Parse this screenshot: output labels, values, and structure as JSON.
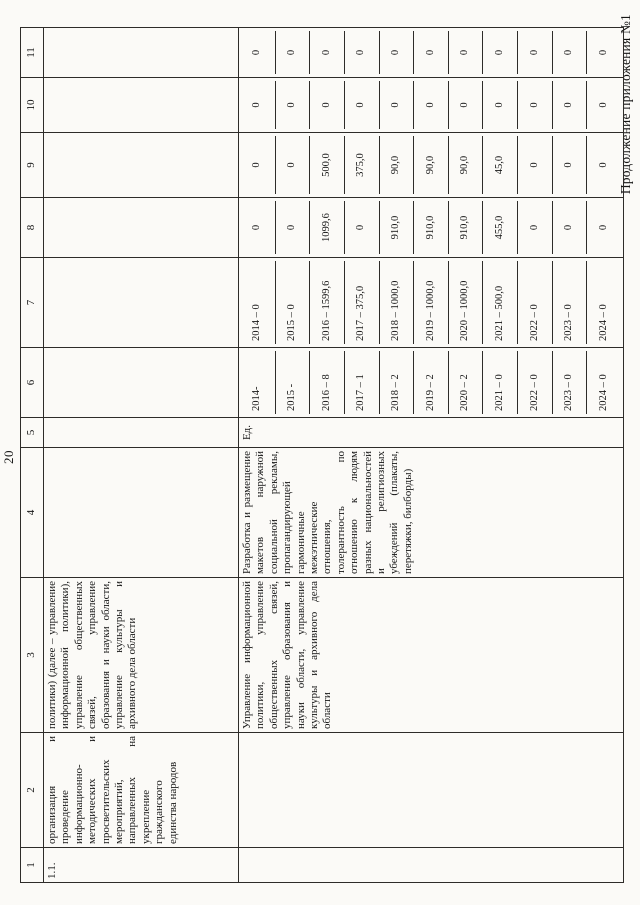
{
  "page": {
    "number": "20",
    "header": "Продолжение приложения №1"
  },
  "table": {
    "column_numbers": [
      "1",
      "2",
      "3",
      "4",
      "5",
      "6",
      "7",
      "8",
      "9",
      "10",
      "11"
    ],
    "row_continuation": {
      "num": "1.1.",
      "activity": "организация и проведение информационно-методических и просветительских мероприятий, направленных на укрепление гражданского единства народов",
      "responsible_tail": "политики) (далее – управление информационной политики), управление общественных связей, управление образования и науки области, управление культуры и архивного дела области"
    },
    "row_main": {
      "responsible": "Управление информационной политики, управление общественных связей, управление образования и науки области, управление культуры и архивного дела области",
      "activity_description": "Разработка и размещение макетов наружной социальной рекламы, пропагандирующей гармоничные межэтнические отношения, толерантность по отношению к людям разных национальностей и религиозных убеждений (плакаты, перетяжки, билборды)",
      "unit": "Ед.",
      "col6_year_counts": [
        "2014-",
        "2015 -",
        "2016 – 8",
        "2017 – 1",
        "2018 – 2",
        "2019 – 2",
        "2020 – 2",
        "2021 – 0",
        "2022 – 0",
        "2023 – 0",
        "2024 – 0"
      ],
      "col7_year_totals": [
        "2014 – 0",
        "2015 – 0",
        "2016 – 1599,6",
        "2017 – 375,0",
        "2018 – 1000,0",
        "2019 – 1000,0",
        "2020 – 1000,0",
        "2021 – 500,0",
        "2022 – 0",
        "2023 – 0",
        "2024 – 0"
      ],
      "col8_values": [
        "0",
        "0",
        "1099,6",
        "0",
        "910,0",
        "910,0",
        "910,0",
        "455,0",
        "0",
        "0",
        "0"
      ],
      "col9_values": [
        "0",
        "0",
        "500,0",
        "375,0",
        "90,0",
        "90,0",
        "90,0",
        "45,0",
        "0",
        "0",
        "0"
      ],
      "col10_values": [
        "0",
        "0",
        "0",
        "0",
        "0",
        "0",
        "0",
        "0",
        "0",
        "0",
        "0"
      ],
      "col11_values": [
        "0",
        "0",
        "0",
        "0",
        "0",
        "0",
        "0",
        "0",
        "0",
        "0",
        "0"
      ]
    }
  }
}
